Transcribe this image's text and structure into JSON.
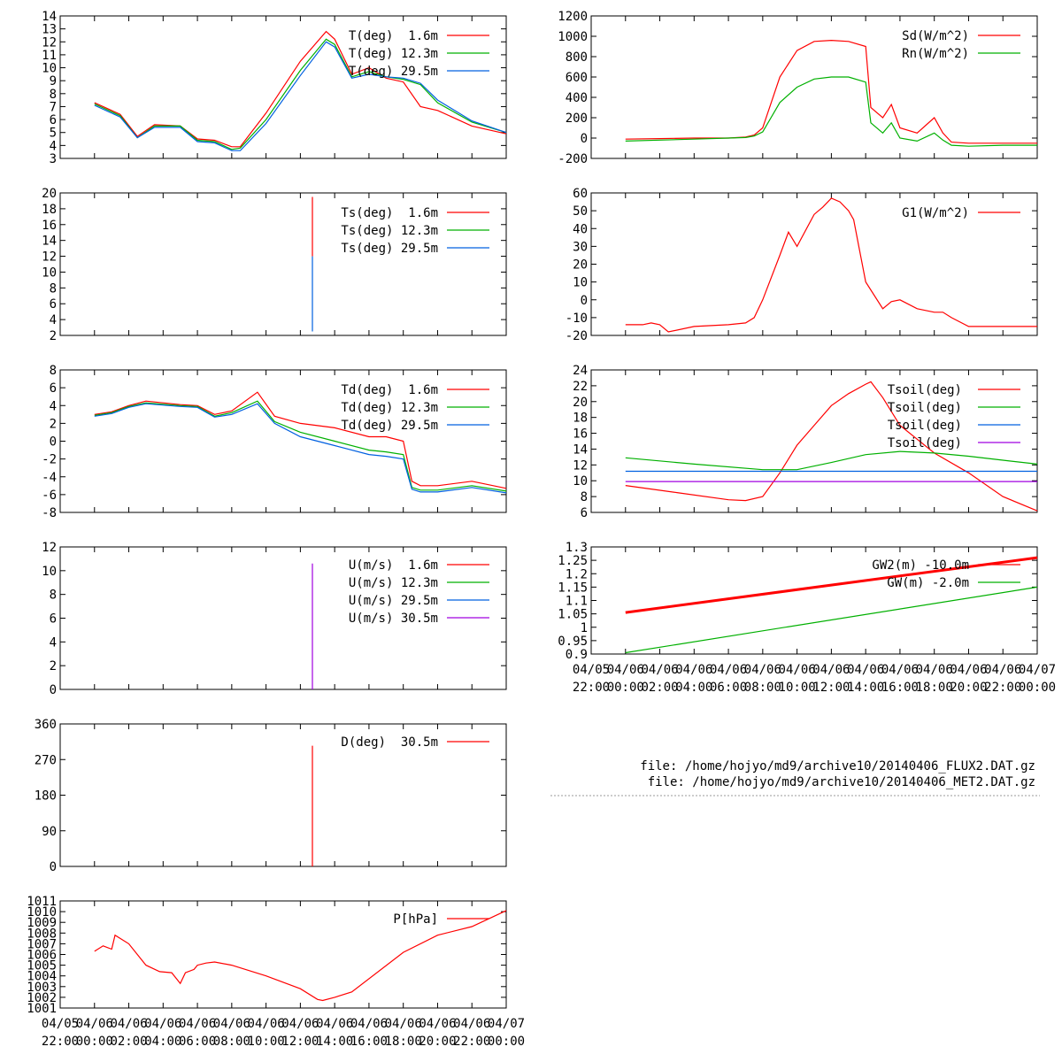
{
  "files": {
    "line1": "file: /home/hojyo/md9/archive10/20140406_FLUX2.DAT.gz",
    "line2": "file: /home/hojyo/md9/archive10/20140406_MET2.DAT.gz"
  },
  "time_axis": {
    "labels_top": [
      "04/05",
      "04/06",
      "04/06",
      "04/06",
      "04/06",
      "04/06",
      "04/06",
      "04/06",
      "04/06",
      "04/06",
      "04/06",
      "04/06",
      "04/06",
      "04/07"
    ],
    "labels_bottom": [
      "22:00",
      "00:00",
      "02:00",
      "04:00",
      "06:00",
      "08:00",
      "10:00",
      "12:00",
      "14:00",
      "16:00",
      "18:00",
      "20:00",
      "22:00",
      "00:00"
    ],
    "hours": [
      -2,
      0,
      2,
      4,
      6,
      8,
      10,
      12,
      14,
      16,
      18,
      20,
      22,
      24
    ]
  },
  "colors": {
    "red": "#ff0000",
    "green": "#00b000",
    "blue": "#0060e0",
    "purple": "#a000e0"
  },
  "chart_data": [
    {
      "id": "T",
      "type": "line",
      "xlim": [
        -2,
        24
      ],
      "ylim": [
        3,
        14
      ],
      "yticks": [
        3,
        4,
        5,
        6,
        7,
        8,
        9,
        10,
        11,
        12,
        13,
        14
      ],
      "series": [
        {
          "name": "T(deg)  1.6m",
          "color": "#ff0000",
          "x": [
            0,
            1.5,
            2.5,
            3.5,
            5,
            6,
            7,
            8,
            8.5,
            10,
            12,
            13.5,
            14,
            15,
            16,
            17,
            18,
            19,
            20,
            22,
            24
          ],
          "y": [
            7.3,
            6.4,
            4.7,
            5.6,
            5.5,
            4.5,
            4.4,
            3.9,
            3.9,
            6.5,
            10.5,
            12.8,
            12.2,
            9.5,
            10,
            9.2,
            8.9,
            7,
            6.7,
            5.5,
            4.9
          ]
        },
        {
          "name": "T(deg) 12.3m",
          "color": "#00b000",
          "x": [
            0,
            1.5,
            2.5,
            3.5,
            5,
            6,
            7,
            8,
            8.5,
            10,
            12,
            13.5,
            14,
            15,
            16,
            17,
            18,
            19,
            20,
            22,
            24
          ],
          "y": [
            7.2,
            6.3,
            4.6,
            5.5,
            5.5,
            4.4,
            4.3,
            3.7,
            3.8,
            6,
            9.8,
            12.2,
            11.8,
            9.3,
            9.7,
            9.3,
            9.1,
            8.7,
            7.3,
            5.8,
            5
          ]
        },
        {
          "name": "T(deg) 29.5m",
          "color": "#0060e0",
          "x": [
            0,
            1.5,
            2.5,
            3.5,
            5,
            6,
            7,
            8,
            8.5,
            10,
            12,
            13.5,
            14,
            15,
            16,
            17,
            18,
            19,
            20,
            22,
            24
          ],
          "y": [
            7.1,
            6.2,
            4.6,
            5.4,
            5.4,
            4.3,
            4.2,
            3.6,
            3.6,
            5.7,
            9.4,
            12,
            11.6,
            9.2,
            9.5,
            9.3,
            9.2,
            8.8,
            7.5,
            5.9,
            5
          ]
        }
      ]
    },
    {
      "id": "Ts",
      "type": "line",
      "xlim": [
        -2,
        24
      ],
      "ylim": [
        2,
        20
      ],
      "yticks": [
        2,
        4,
        6,
        8,
        10,
        12,
        14,
        16,
        18,
        20
      ],
      "series": [
        {
          "name": "Ts(deg)  1.6m",
          "color": "#ff0000",
          "x": [
            12.7,
            12.7
          ],
          "y": [
            12,
            19.5
          ]
        },
        {
          "name": "Ts(deg) 12.3m",
          "color": "#00b000",
          "x": [
            12.7
          ],
          "y": [
            12
          ]
        },
        {
          "name": "Ts(deg) 29.5m",
          "color": "#0060e0",
          "x": [
            12.7,
            12.7
          ],
          "y": [
            2.5,
            12
          ]
        }
      ]
    },
    {
      "id": "Td",
      "type": "line",
      "xlim": [
        -2,
        24
      ],
      "ylim": [
        -8,
        8
      ],
      "yticks": [
        -8,
        -6,
        -4,
        -2,
        0,
        2,
        4,
        6,
        8
      ],
      "series": [
        {
          "name": "Td(deg)  1.6m",
          "color": "#ff0000",
          "x": [
            0,
            1,
            2,
            3,
            5,
            6,
            7,
            8,
            9.5,
            10.5,
            12,
            14,
            16,
            17,
            18,
            18.5,
            19,
            20,
            22,
            24
          ],
          "y": [
            3,
            3.3,
            4,
            4.5,
            4.1,
            4,
            3,
            3.4,
            5.5,
            2.8,
            2,
            1.5,
            0.5,
            0.5,
            0,
            -4.5,
            -5,
            -5,
            -4.5,
            -5.3
          ]
        },
        {
          "name": "Td(deg) 12.3m",
          "color": "#00b000",
          "x": [
            0,
            1,
            2,
            3,
            5,
            6,
            7,
            8,
            9.5,
            10.5,
            12,
            14,
            16,
            17,
            18,
            18.5,
            19,
            20,
            22,
            24
          ],
          "y": [
            2.9,
            3.2,
            3.9,
            4.3,
            4,
            3.9,
            2.8,
            3.2,
            4.5,
            2.2,
            1,
            0,
            -1,
            -1.2,
            -1.5,
            -5.2,
            -5.5,
            -5.5,
            -5,
            -5.6
          ]
        },
        {
          "name": "Td(deg) 29.5m",
          "color": "#0060e0",
          "x": [
            0,
            1,
            2,
            3,
            5,
            6,
            7,
            8,
            9.5,
            10.5,
            12,
            14,
            16,
            17,
            18,
            18.5,
            19,
            20,
            22,
            24
          ],
          "y": [
            2.8,
            3.1,
            3.8,
            4.2,
            3.9,
            3.8,
            2.7,
            3,
            4.2,
            2,
            0.5,
            -0.5,
            -1.5,
            -1.7,
            -2,
            -5.4,
            -5.7,
            -5.7,
            -5.2,
            -5.8
          ]
        }
      ]
    },
    {
      "id": "U",
      "type": "line",
      "xlim": [
        -2,
        24
      ],
      "ylim": [
        0,
        12
      ],
      "yticks": [
        0,
        2,
        4,
        6,
        8,
        10,
        12
      ],
      "series": [
        {
          "name": "U(m/s)  1.6m",
          "color": "#ff0000",
          "x": [],
          "y": []
        },
        {
          "name": "U(m/s) 12.3m",
          "color": "#00b000",
          "x": [],
          "y": []
        },
        {
          "name": "U(m/s) 29.5m",
          "color": "#0060e0",
          "x": [],
          "y": []
        },
        {
          "name": "U(m/s) 30.5m",
          "color": "#a000e0",
          "x": [
            12.7,
            12.7
          ],
          "y": [
            0,
            10.6
          ]
        }
      ]
    },
    {
      "id": "D",
      "type": "line",
      "xlim": [
        -2,
        24
      ],
      "ylim": [
        0,
        360
      ],
      "yticks": [
        0,
        90,
        180,
        270,
        360
      ],
      "series": [
        {
          "name": "D(deg)  30.5m",
          "color": "#ff0000",
          "x": [
            12.7,
            12.7
          ],
          "y": [
            0,
            305
          ]
        }
      ]
    },
    {
      "id": "P",
      "type": "line",
      "xlim": [
        -2,
        24
      ],
      "ylim": [
        1001,
        1011
      ],
      "yticks": [
        1001,
        1002,
        1003,
        1004,
        1005,
        1006,
        1007,
        1008,
        1009,
        1010,
        1011
      ],
      "series": [
        {
          "name": "P[hPa]",
          "color": "#ff0000",
          "x": [
            0,
            0.5,
            1,
            1.2,
            2,
            3,
            3.8,
            4.5,
            5,
            5.3,
            5.8,
            6,
            6.5,
            7,
            8,
            10,
            12,
            13,
            13.3,
            14,
            15,
            18,
            20,
            22,
            24
          ],
          "y": [
            1006.3,
            1006.8,
            1006.5,
            1007.8,
            1007,
            1005,
            1004.4,
            1004.3,
            1003.3,
            1004.3,
            1004.6,
            1005,
            1005.2,
            1005.3,
            1005,
            1004,
            1002.8,
            1001.8,
            1001.7,
            1002,
            1002.5,
            1006.2,
            1007.8,
            1008.6,
            1010.1
          ]
        }
      ]
    },
    {
      "id": "Rad",
      "type": "line",
      "xlim": [
        -2,
        24
      ],
      "ylim": [
        -200,
        1200
      ],
      "yticks": [
        -200,
        0,
        200,
        400,
        600,
        800,
        1000,
        1200
      ],
      "series": [
        {
          "name": "Sd(W/m^2)",
          "color": "#ff0000",
          "x": [
            0,
            2,
            4,
            6,
            7,
            7.5,
            8,
            9,
            10,
            11,
            12,
            13,
            14,
            14.3,
            15,
            15.5,
            16,
            17,
            18,
            18.5,
            19,
            20,
            22,
            24
          ],
          "y": [
            -10,
            -5,
            0,
            0,
            10,
            30,
            100,
            600,
            860,
            950,
            960,
            950,
            900,
            300,
            200,
            330,
            100,
            50,
            200,
            50,
            -40,
            -50,
            -50,
            -50
          ]
        },
        {
          "name": "Rn(W/m^2)",
          "color": "#00b000",
          "x": [
            0,
            2,
            4,
            6,
            7,
            7.5,
            8,
            9,
            10,
            11,
            12,
            13,
            14,
            14.3,
            15,
            15.5,
            16,
            17,
            18,
            18.5,
            19,
            20,
            22,
            24
          ],
          "y": [
            -30,
            -20,
            -10,
            0,
            5,
            20,
            60,
            350,
            500,
            580,
            600,
            600,
            550,
            150,
            50,
            150,
            0,
            -30,
            50,
            -20,
            -70,
            -80,
            -70,
            -70
          ]
        }
      ]
    },
    {
      "id": "G1",
      "type": "line",
      "xlim": [
        -2,
        24
      ],
      "ylim": [
        -20,
        60
      ],
      "yticks": [
        -20,
        -10,
        0,
        10,
        20,
        30,
        40,
        50,
        60
      ],
      "series": [
        {
          "name": "G1(W/m^2)",
          "color": "#ff0000",
          "x": [
            0,
            1,
            1.5,
            2,
            2.5,
            4,
            6,
            7,
            7.5,
            8,
            9,
            9.5,
            10,
            11,
            11.5,
            12,
            12.5,
            13,
            13.3,
            13.6,
            14,
            15,
            15.5,
            16,
            17,
            18,
            18.5,
            19,
            20,
            22,
            24
          ],
          "y": [
            -14,
            -14,
            -13,
            -14,
            -18,
            -15,
            -14,
            -13,
            -10,
            0,
            25,
            38,
            30,
            48,
            52,
            57,
            55,
            50,
            45,
            30,
            10,
            -5,
            -1,
            0,
            -5,
            -7,
            -7,
            -10,
            -15,
            -15,
            -15
          ]
        }
      ]
    },
    {
      "id": "Tsoil",
      "type": "line",
      "xlim": [
        -2,
        24
      ],
      "ylim": [
        6,
        24
      ],
      "yticks": [
        6,
        8,
        10,
        12,
        14,
        16,
        18,
        20,
        22,
        24
      ],
      "series": [
        {
          "name": "Tsoil(deg)",
          "color": "#ff0000",
          "x": [
            0,
            3,
            6,
            7,
            8,
            9,
            10,
            11,
            12,
            13,
            14,
            14.3,
            15,
            16,
            18,
            20,
            22,
            24
          ],
          "y": [
            9.4,
            8.5,
            7.6,
            7.5,
            8,
            11,
            14.5,
            17,
            19.5,
            21,
            22.2,
            22.5,
            20.5,
            17,
            13.5,
            11,
            8,
            6.2
          ]
        },
        {
          "name": "Tsoil(deg)",
          "color": "#00b000",
          "x": [
            0,
            4,
            8,
            10,
            12,
            14,
            16,
            18,
            20,
            22,
            24
          ],
          "y": [
            12.9,
            12.1,
            11.4,
            11.4,
            12.3,
            13.3,
            13.7,
            13.5,
            13.1,
            12.6,
            12.1
          ]
        },
        {
          "name": "Tsoil(deg)",
          "color": "#0060e0",
          "x": [
            0,
            24
          ],
          "y": [
            11.2,
            11.2
          ]
        },
        {
          "name": "Tsoil(deg)",
          "color": "#a000e0",
          "x": [
            0,
            24
          ],
          "y": [
            9.9,
            9.9
          ]
        }
      ]
    },
    {
      "id": "GW",
      "type": "line",
      "xlim": [
        -2,
        24
      ],
      "ylim": [
        0.9,
        1.3
      ],
      "yticks": [
        0.9,
        0.95,
        1,
        1.05,
        1.1,
        1.15,
        1.2,
        1.25,
        1.3
      ],
      "ytick_labels": [
        "0.9",
        "0.95",
        "1",
        "1.05",
        "1.1",
        "1.15",
        "1.2",
        "1.25",
        "1.3"
      ],
      "series": [
        {
          "name": "GW2(m) -10.0m",
          "color": "#ff0000",
          "x": [
            0,
            24
          ],
          "y": [
            1.055,
            1.26
          ]
        },
        {
          "name": "GW(m) -2.0m",
          "color": "#00b000",
          "x": [
            0,
            24
          ],
          "y": [
            0.905,
            1.15
          ]
        }
      ]
    }
  ]
}
